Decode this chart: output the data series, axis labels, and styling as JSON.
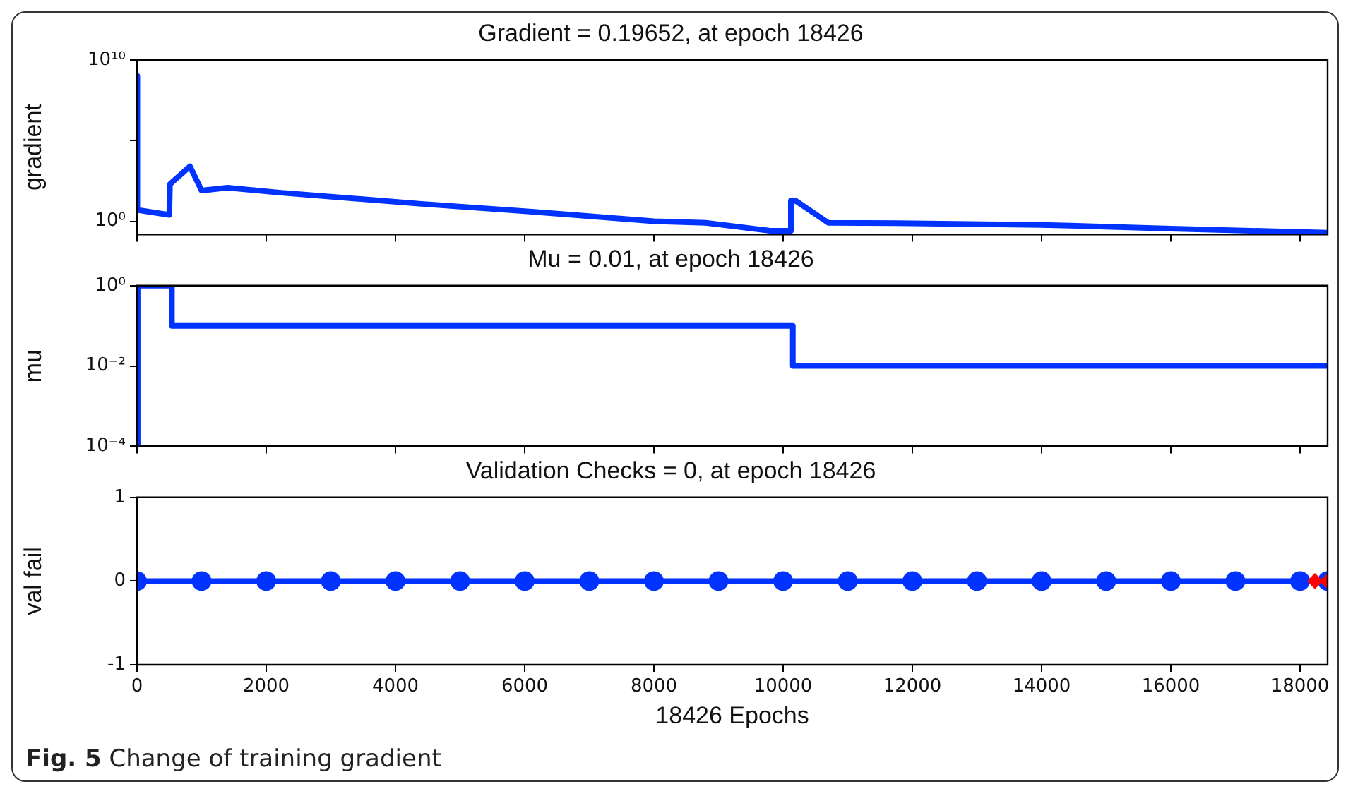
{
  "chart_data": [
    {
      "type": "line",
      "title": "Gradient = 0.19652, at epoch 18426",
      "ylabel": "gradient",
      "log": "y",
      "marker": "none",
      "tick_labels": "y",
      "xlim": [
        0,
        18426
      ],
      "xticks": [
        0,
        2000,
        4000,
        6000,
        8000,
        10000,
        12000,
        14000,
        16000,
        18000
      ],
      "ylim": [
        0.15,
        10000000000
      ],
      "yticks": [
        {
          "value": 1,
          "label": "10⁰"
        },
        {
          "value": 100000,
          "label": null
        },
        {
          "value": 10000000000,
          "label": "10¹⁰"
        }
      ],
      "series": [
        {
          "color": "#0033ff",
          "x": [
            0,
            5,
            500,
            510,
            820,
            1000,
            1400,
            2200,
            4400,
            6500,
            8000,
            8800,
            9800,
            10120,
            10120,
            10200,
            10700,
            12000,
            14000,
            16000,
            18426
          ],
          "values": [
            1000000000,
            5,
            2.5,
            200,
            2500,
            80,
            120,
            60,
            12,
            3,
            1,
            0.8,
            0.26,
            0.26,
            18,
            18,
            0.8,
            0.75,
            0.6,
            0.35,
            0.19652
          ]
        }
      ]
    },
    {
      "type": "step",
      "title": "Mu = 0.01, at epoch 18426",
      "ylabel": "mu",
      "log": "y",
      "marker": "none",
      "tick_labels": "y",
      "xlim": [
        0,
        18426
      ],
      "xticks": [
        0,
        2000,
        4000,
        6000,
        8000,
        10000,
        12000,
        14000,
        16000,
        18000
      ],
      "ylim": [
        0.0001,
        1
      ],
      "yticks": [
        {
          "value": 0.0001,
          "label": "10⁻⁴"
        },
        {
          "value": 0.01,
          "label": "10⁻²"
        },
        {
          "value": 1,
          "label": "10⁰"
        }
      ],
      "series": [
        {
          "color": "#0033ff",
          "x": [
            0,
            10,
            540,
            10150,
            18426
          ],
          "values": [
            0.0001,
            1,
            0.1,
            0.01,
            0.01
          ]
        }
      ]
    },
    {
      "type": "line",
      "title": "Validation Checks = 0, at epoch 18426",
      "ylabel": "val fail",
      "xlabel": "18426 Epochs",
      "marker": "circle",
      "xlim": [
        0,
        18426
      ],
      "xticks": [
        0,
        2000,
        4000,
        6000,
        8000,
        10000,
        12000,
        14000,
        16000,
        18000
      ],
      "ylim": [
        -1,
        1
      ],
      "yticks": [
        -1,
        0,
        1
      ],
      "annotations": [
        "Fig. 5 Change of training gradient"
      ],
      "series": [
        {
          "color": "#0033ff",
          "x": [
            0,
            1000,
            2000,
            3000,
            4000,
            5000,
            6000,
            7000,
            8000,
            9000,
            10000,
            11000,
            12000,
            13000,
            14000,
            15000,
            16000,
            17000,
            18000,
            18426
          ],
          "values": [
            0,
            0,
            0,
            0,
            0,
            0,
            0,
            0,
            0,
            0,
            0,
            0,
            0,
            0,
            0,
            0,
            0,
            0,
            0,
            0
          ]
        },
        {
          "type": "scatter",
          "marker": "diamond",
          "color": "#ff0000",
          "x": [
            18230,
            18426
          ],
          "values": [
            0,
            0
          ]
        }
      ]
    }
  ]
}
